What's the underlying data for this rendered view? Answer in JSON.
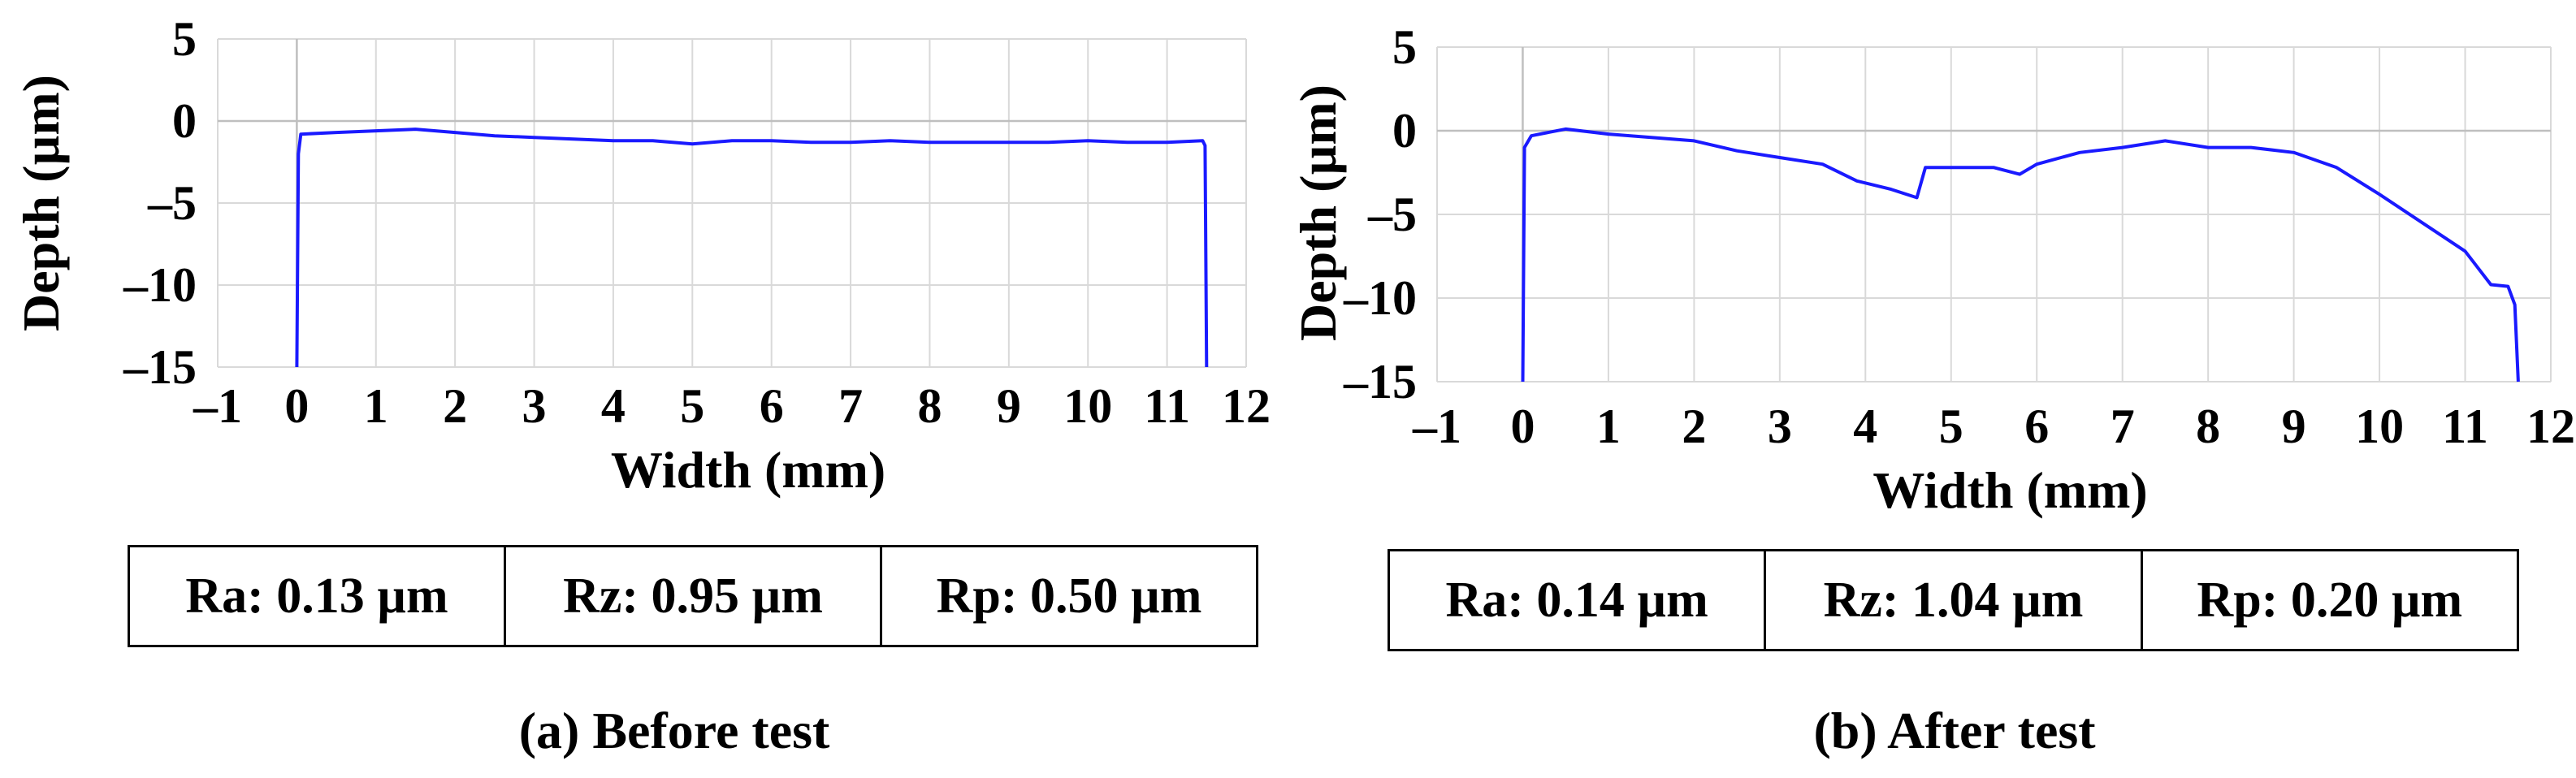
{
  "panels": [
    {
      "id": "a",
      "caption": "(a) Before test",
      "roughness": [
        {
          "label": "Ra: 0.13 µm"
        },
        {
          "label": "Rz: 0.95 µm"
        },
        {
          "label": "Rp: 0.50 µm"
        }
      ]
    },
    {
      "id": "b",
      "caption": "(b) After test",
      "roughness": [
        {
          "label": "Ra: 0.14 µm"
        },
        {
          "label": "Rz: 1.04 µm"
        },
        {
          "label": "Rp: 0.20 µm"
        }
      ]
    }
  ],
  "chart_data": [
    {
      "type": "line",
      "xlabel": "Width (mm)",
      "ylabel": "Depth (µm)",
      "xlim": [
        -1,
        12
      ],
      "ylim": [
        -15,
        5
      ],
      "x_ticks": [
        "–1",
        "0",
        "1",
        "2",
        "3",
        "4",
        "5",
        "6",
        "7",
        "8",
        "9",
        "10",
        "11",
        "12"
      ],
      "y_ticks": [
        "5",
        "0",
        "–5",
        "–10",
        "–15"
      ],
      "grid": true,
      "series_color": "#1a1aff",
      "series": [
        {
          "x": [
            0,
            0.02,
            0.05,
            0.5,
            1.0,
            1.5,
            2.0,
            2.5,
            3.0,
            3.5,
            4.0,
            4.5,
            5.0,
            5.5,
            6.0,
            6.5,
            7.0,
            7.5,
            8.0,
            8.5,
            9.0,
            9.5,
            10.0,
            10.5,
            11.0,
            11.45,
            11.48,
            11.5
          ],
          "y": [
            -15,
            -2.0,
            -0.8,
            -0.7,
            -0.6,
            -0.5,
            -0.7,
            -0.9,
            -1.0,
            -1.1,
            -1.2,
            -1.2,
            -1.4,
            -1.2,
            -1.2,
            -1.3,
            -1.3,
            -1.2,
            -1.3,
            -1.3,
            -1.3,
            -1.3,
            -1.2,
            -1.3,
            -1.3,
            -1.2,
            -1.5,
            -15
          ]
        }
      ]
    },
    {
      "type": "line",
      "xlabel": "Width (mm)",
      "ylabel": "Depth (µm)",
      "xlim": [
        -1,
        12
      ],
      "ylim": [
        -15,
        5
      ],
      "x_ticks": [
        "–1",
        "0",
        "1",
        "2",
        "3",
        "4",
        "5",
        "6",
        "7",
        "8",
        "9",
        "10",
        "11",
        "12"
      ],
      "y_ticks": [
        "5",
        "0",
        "–5",
        "–10",
        "–15"
      ],
      "grid": true,
      "series_color": "#1a1aff",
      "series": [
        {
          "x": [
            0,
            0.02,
            0.1,
            0.5,
            1.0,
            1.5,
            2.0,
            2.5,
            3.0,
            3.5,
            3.9,
            4.3,
            4.6,
            4.7,
            5.0,
            5.5,
            5.8,
            6.0,
            6.5,
            7.0,
            7.5,
            8.0,
            8.5,
            9.0,
            9.5,
            10.0,
            10.5,
            11.0,
            11.3,
            11.5,
            11.58,
            11.62
          ],
          "y": [
            -15,
            -1.0,
            -0.3,
            0.1,
            -0.2,
            -0.4,
            -0.6,
            -1.2,
            -1.6,
            -2.0,
            -3.0,
            -3.5,
            -4.0,
            -2.2,
            -2.2,
            -2.2,
            -2.6,
            -2.0,
            -1.3,
            -1.0,
            -0.6,
            -1.0,
            -1.0,
            -1.3,
            -2.2,
            -3.8,
            -5.5,
            -7.2,
            -9.2,
            -9.3,
            -10.4,
            -15
          ]
        }
      ]
    }
  ]
}
